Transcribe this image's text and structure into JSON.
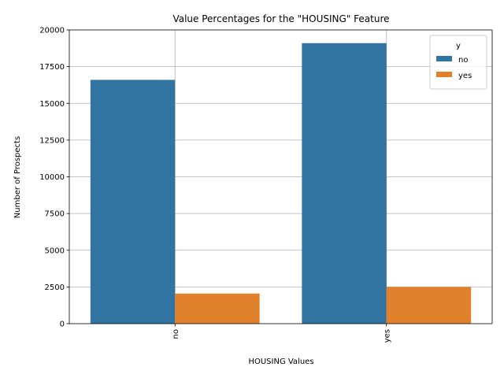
{
  "chart_data": {
    "type": "bar",
    "title": "Value Percentages for the \"HOUSING\" Feature",
    "xlabel": "HOUSING Values",
    "ylabel": "Number of Prospects",
    "categories": [
      "no",
      "yes"
    ],
    "series": [
      {
        "name": "no",
        "color": "#3274a1",
        "values": [
          16600,
          19100
        ]
      },
      {
        "name": "yes",
        "color": "#e1812c",
        "values": [
          2050,
          2500
        ]
      }
    ],
    "ylim": [
      0,
      20000
    ],
    "yticks": [
      0,
      2500,
      5000,
      7500,
      10000,
      12500,
      15000,
      17500,
      20000
    ],
    "grid": true,
    "legend": {
      "title": "y",
      "position": "top-right"
    }
  }
}
